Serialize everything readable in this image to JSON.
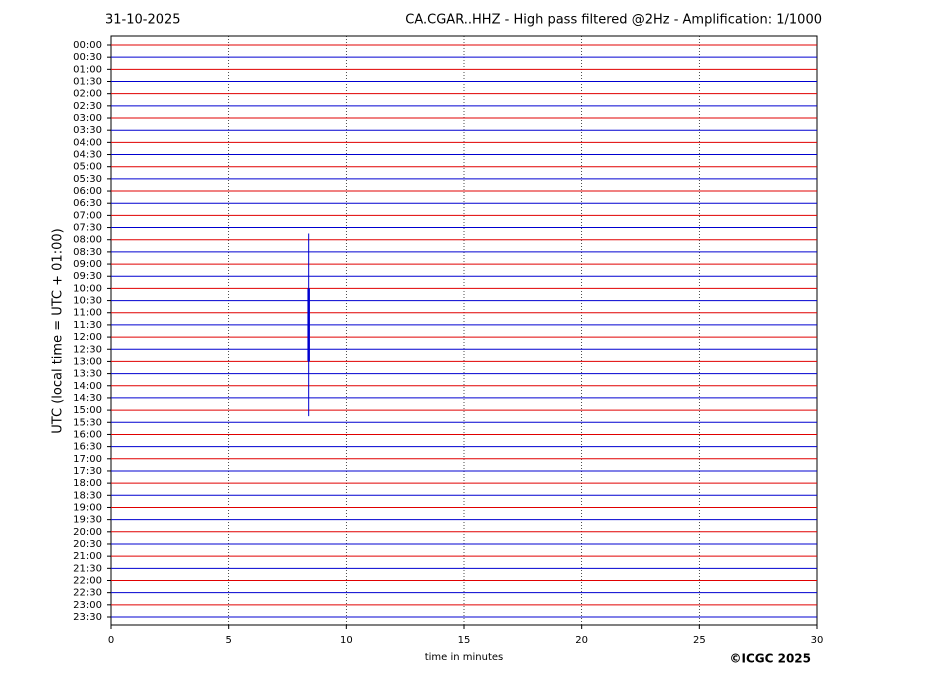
{
  "chart_data": {
    "type": "helicorder",
    "date": "31-10-2025",
    "title": "CA.CGAR..HHZ - High pass filtered @2Hz - Amplification: 1/1000",
    "ylabel": "UTC (local time = UTC + 01:00)",
    "xlabel": "time in minutes",
    "copyright": "©ICGC 2025",
    "categories": [
      "00:00",
      "00:30",
      "01:00",
      "01:30",
      "02:00",
      "02:30",
      "03:00",
      "03:30",
      "04:00",
      "04:30",
      "05:00",
      "05:30",
      "06:00",
      "06:30",
      "07:00",
      "07:30",
      "08:00",
      "08:30",
      "09:00",
      "09:30",
      "10:00",
      "10:30",
      "11:00",
      "11:30",
      "12:00",
      "12:30",
      "13:00",
      "13:30",
      "14:00",
      "14:30",
      "15:00",
      "15:30",
      "16:00",
      "16:30",
      "17:00",
      "17:30",
      "18:00",
      "18:30",
      "19:00",
      "19:30",
      "20:00",
      "20:30",
      "21:00",
      "21:30",
      "22:00",
      "22:30",
      "23:00",
      "23:30"
    ],
    "trace_colors": [
      "#e00000",
      "#0000d0"
    ],
    "xlim": [
      0,
      30
    ],
    "xticks": [
      0,
      5,
      10,
      15,
      20,
      25,
      30
    ],
    "grid": true,
    "event": {
      "x": 8.4,
      "from": 15,
      "to": 30
    }
  }
}
